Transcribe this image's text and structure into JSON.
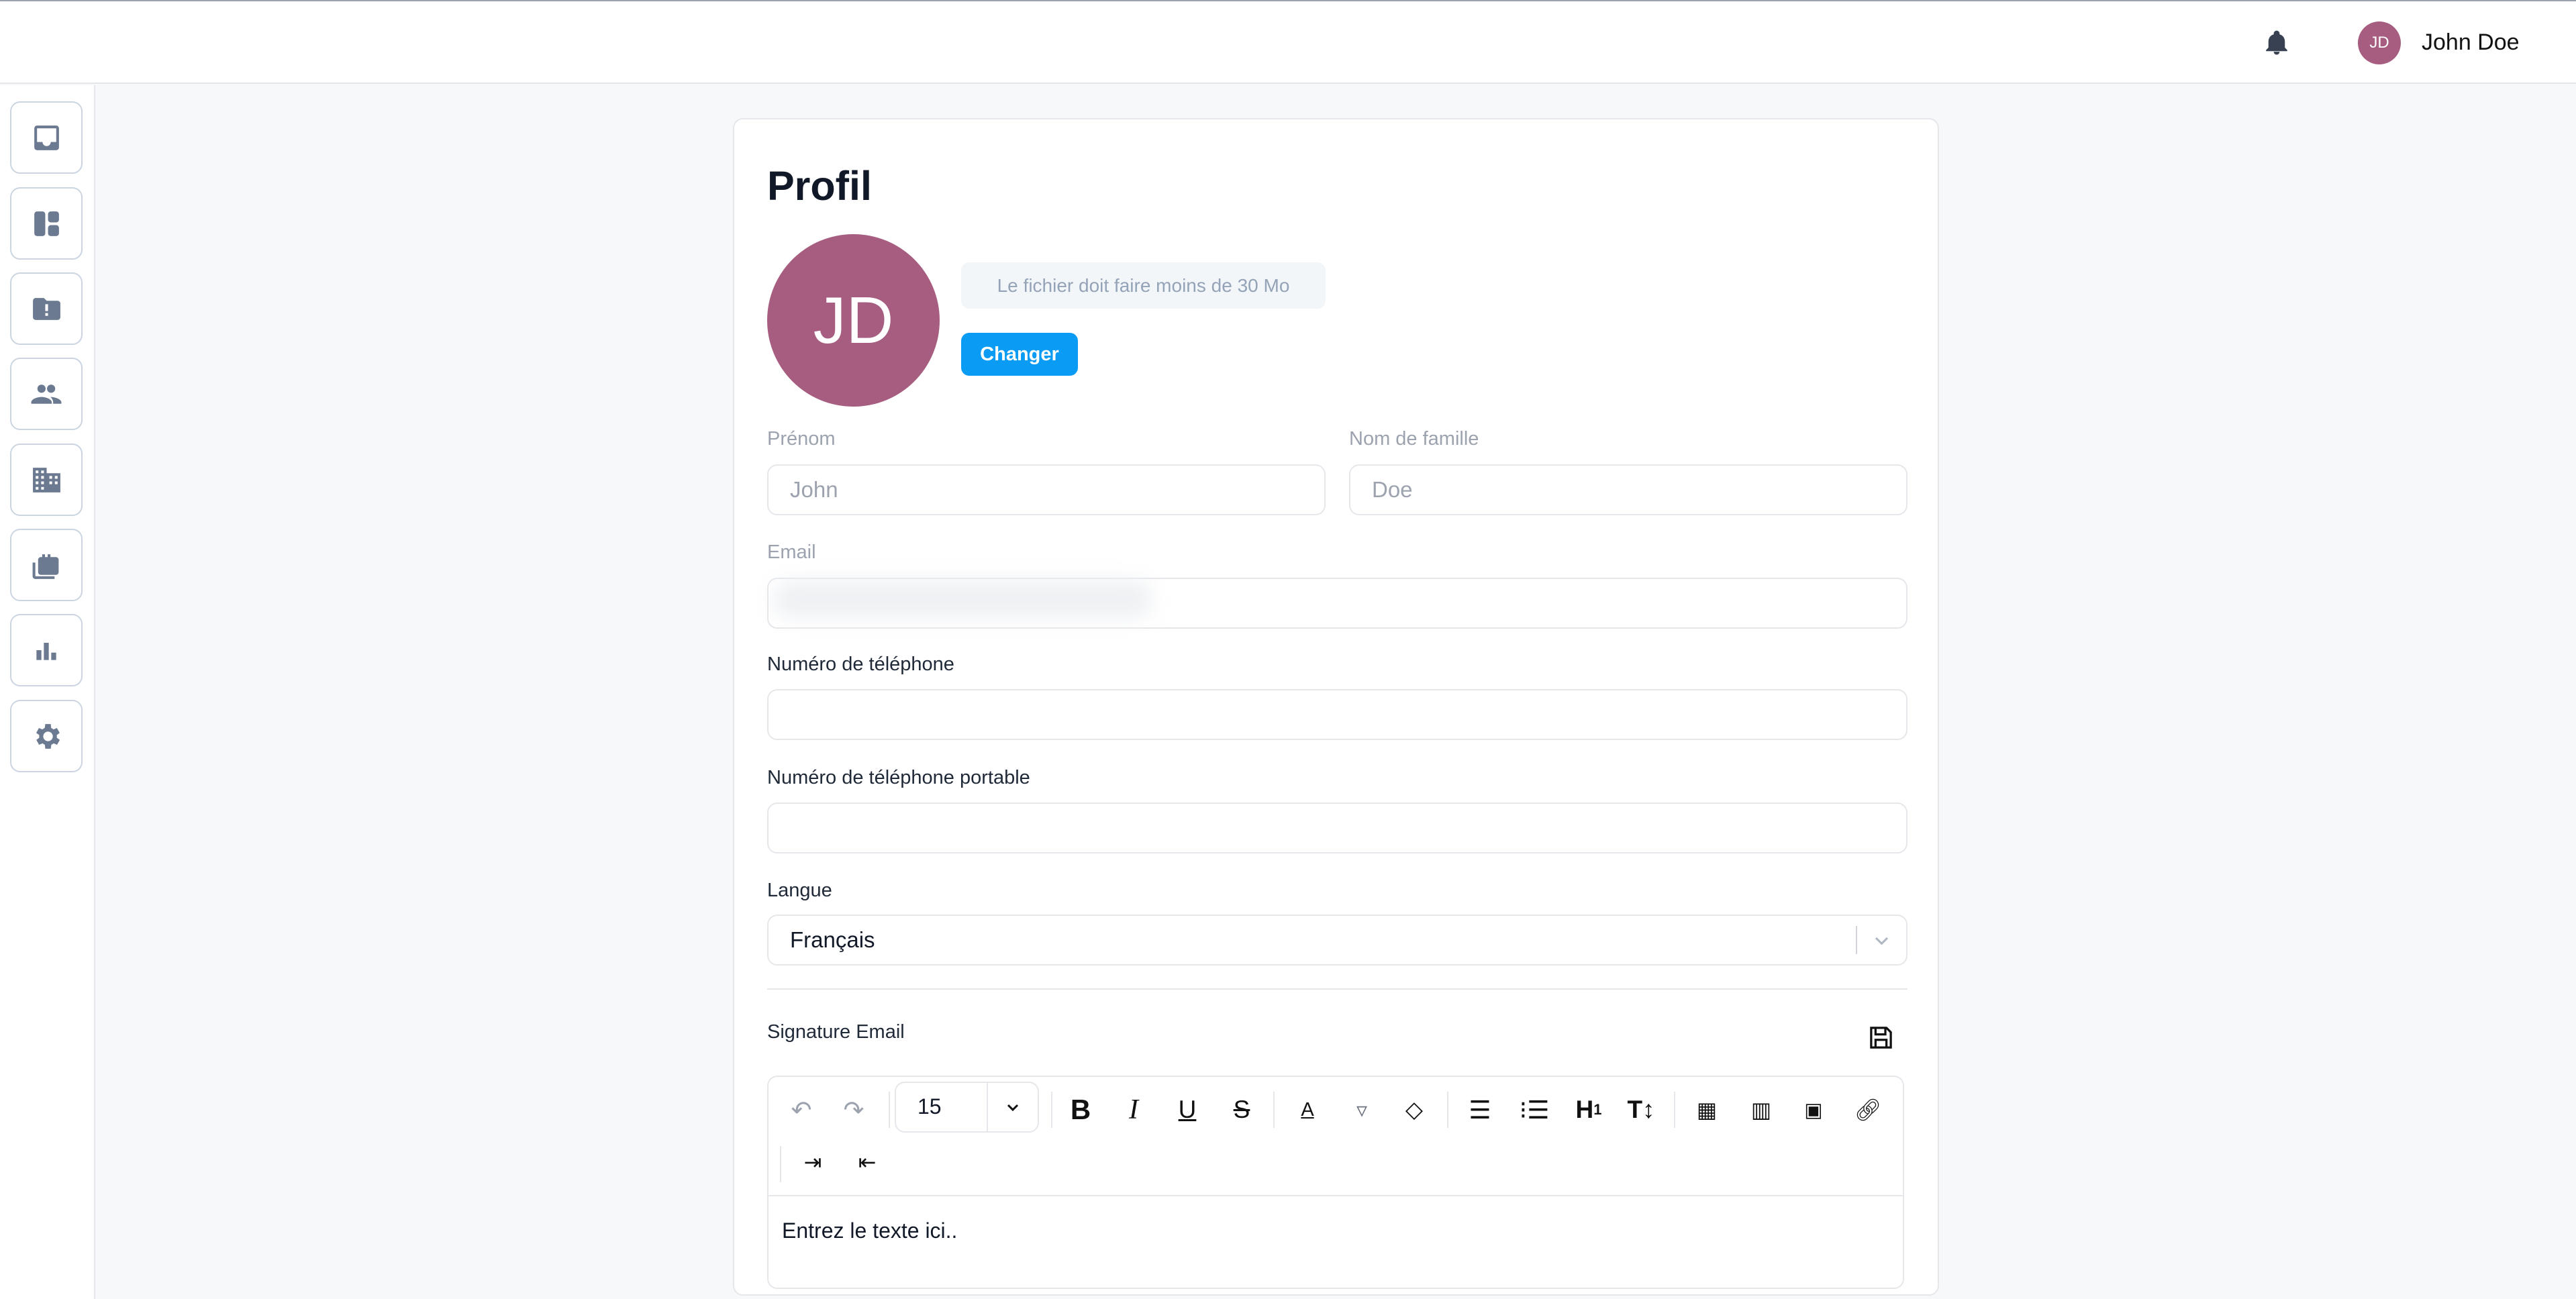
{
  "header": {
    "user_initials": "JD",
    "user_name": "John Doe",
    "icons": [
      "bell-icon"
    ]
  },
  "sidebar": {
    "items": [
      {
        "icon": "inbox-icon"
      },
      {
        "icon": "dashboard-icon"
      },
      {
        "icon": "folder-alert-icon"
      },
      {
        "icon": "people-icon"
      },
      {
        "icon": "building-icon"
      },
      {
        "icon": "briefcase-icon"
      },
      {
        "icon": "bar-chart-icon"
      },
      {
        "icon": "gear-icon"
      }
    ]
  },
  "profile": {
    "title": "Profil",
    "avatar_initials": "JD",
    "avatar_color": "#a65d7f",
    "file_hint": "Le fichier doit faire moins de 30 Mo",
    "change_button": "Changer",
    "accent": "#0a9cf5",
    "first_name_label": "Prénom",
    "first_name_value": "John",
    "last_name_label": "Nom de famille",
    "last_name_value": "Doe",
    "email_label": "Email",
    "phone_label": "Numéro de téléphone",
    "mobile_label": "Numéro de téléphone portable",
    "language_label": "Langue",
    "language_value": "Français",
    "signature_label": "Signature Email"
  },
  "editor": {
    "font_size": "15",
    "placeholder": "Entrez le texte ici..",
    "tools": [
      "undo",
      "redo",
      "bold",
      "italic",
      "underline",
      "strikethrough",
      "font-color",
      "highlight",
      "clear-format",
      "align-center",
      "bullet-list",
      "heading",
      "line-height",
      "table",
      "columns",
      "image",
      "link",
      "indent",
      "outdent"
    ]
  }
}
